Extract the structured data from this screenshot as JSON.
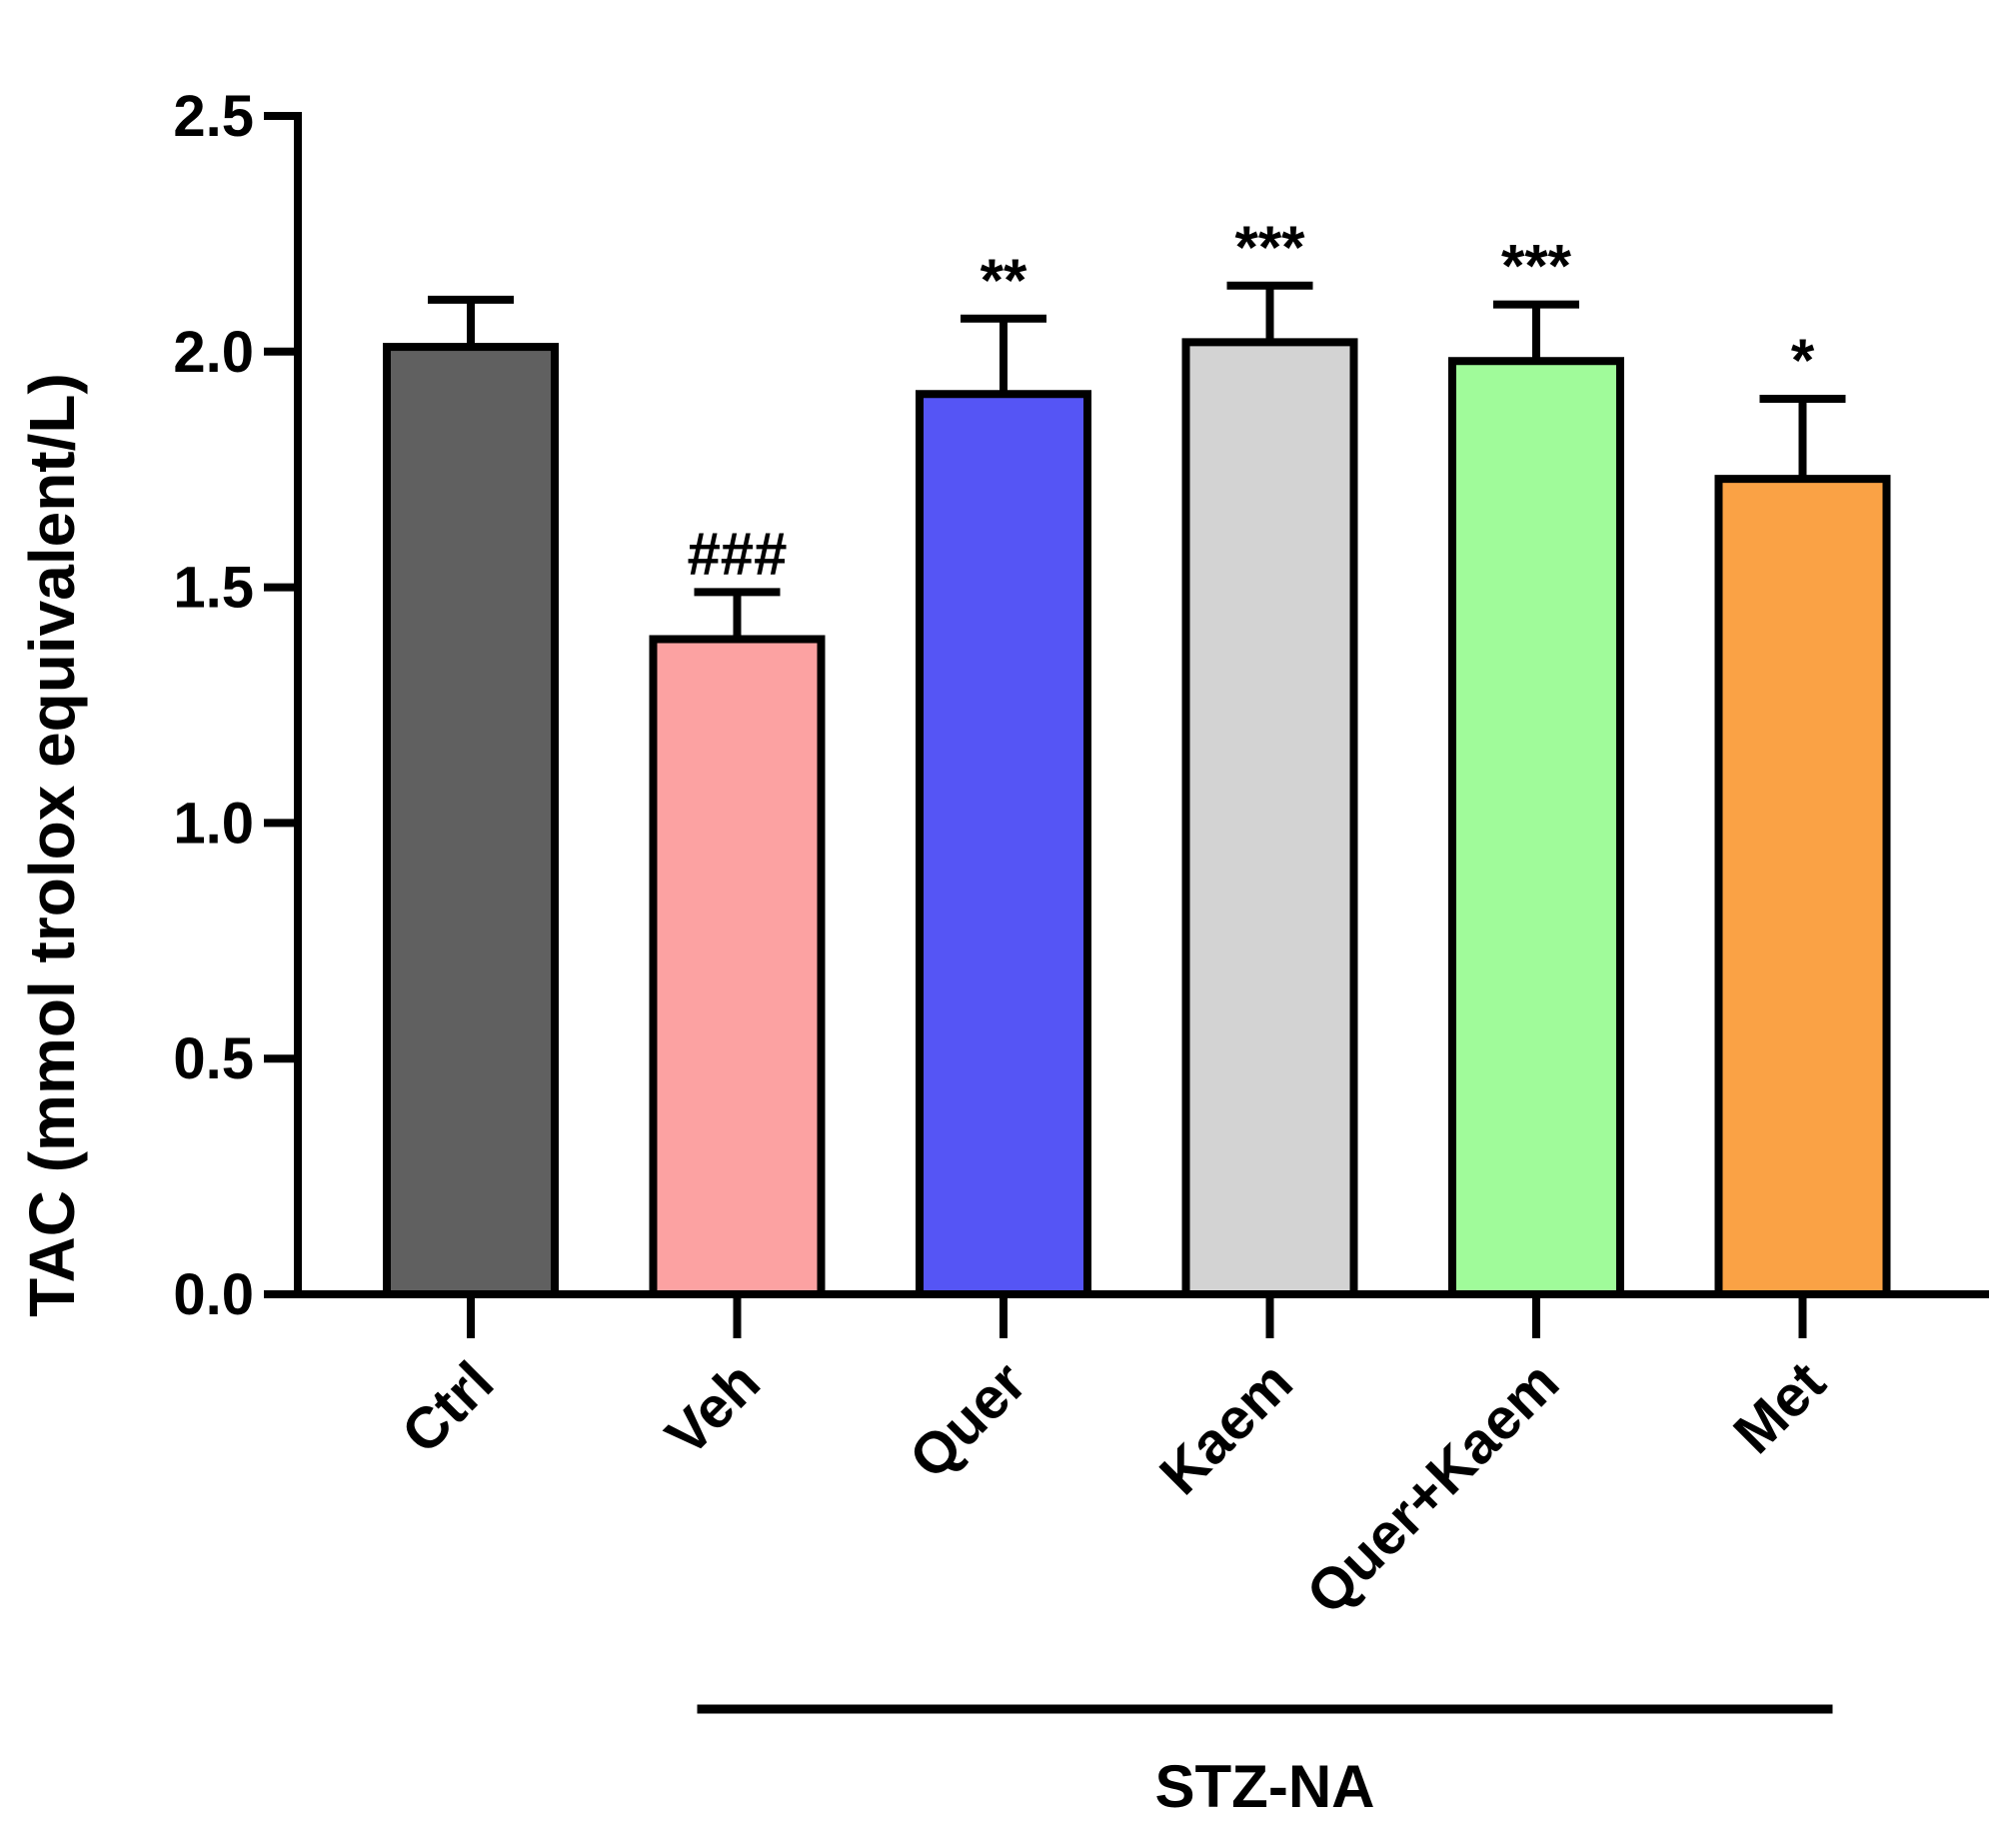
{
  "chart_data": {
    "type": "bar",
    "title": "",
    "xlabel": "",
    "ylabel": "TAC (mmol trolox equivalent/L)",
    "ylim": [
      0,
      2.5
    ],
    "yticks": [
      0.0,
      0.5,
      1.0,
      1.5,
      2.0,
      2.5
    ],
    "ytick_labels": [
      "0.0",
      "0.5",
      "1.0",
      "1.5",
      "2.0",
      "2.5"
    ],
    "categories": [
      "Ctrl",
      "Veh",
      "Quer",
      "Kaem",
      "Quer+Kaem",
      "Met"
    ],
    "values": [
      2.01,
      1.39,
      1.91,
      2.02,
      1.98,
      1.73
    ],
    "error_upper": [
      0.1,
      0.1,
      0.16,
      0.12,
      0.12,
      0.17
    ],
    "colors": [
      "#606060",
      "#FCA2A2",
      "#5555F5",
      "#D3D3D3",
      "#A0FB9A",
      "#FAA245"
    ],
    "significance": [
      "",
      "###",
      "**",
      "***",
      "***",
      "*"
    ],
    "group_bracket": {
      "label": "STZ-NA",
      "from_category": "Veh",
      "to_category": "Met"
    },
    "grid": false
  }
}
